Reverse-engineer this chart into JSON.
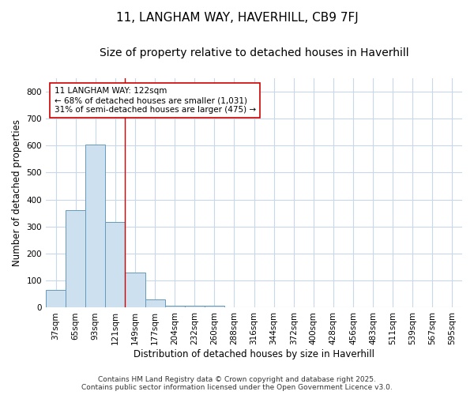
{
  "title": "11, LANGHAM WAY, HAVERHILL, CB9 7FJ",
  "subtitle": "Size of property relative to detached houses in Haverhill",
  "xlabel": "Distribution of detached houses by size in Haverhill",
  "ylabel": "Number of detached properties",
  "categories": [
    "37sqm",
    "65sqm",
    "93sqm",
    "121sqm",
    "149sqm",
    "177sqm",
    "204sqm",
    "232sqm",
    "260sqm",
    "288sqm",
    "316sqm",
    "344sqm",
    "372sqm",
    "400sqm",
    "428sqm",
    "456sqm",
    "483sqm",
    "511sqm",
    "539sqm",
    "567sqm",
    "595sqm"
  ],
  "values": [
    65,
    360,
    605,
    318,
    130,
    30,
    6,
    6,
    6,
    0,
    0,
    0,
    0,
    0,
    0,
    0,
    0,
    0,
    0,
    0,
    0
  ],
  "bar_color": "#cce0f0",
  "bar_edge_color": "#6699bb",
  "highlight_index": 3,
  "highlight_line_color": "#cc0000",
  "annotation_text": "11 LANGHAM WAY: 122sqm\n← 68% of detached houses are smaller (1,031)\n31% of semi-detached houses are larger (475) →",
  "annotation_box_color": "#ffffff",
  "annotation_box_edge_color": "#cc0000",
  "ylim": [
    0,
    850
  ],
  "yticks": [
    0,
    100,
    200,
    300,
    400,
    500,
    600,
    700,
    800
  ],
  "background_color": "#ffffff",
  "plot_area_color": "#ffffff",
  "grid_color": "#c8d8e8",
  "footer_line1": "Contains HM Land Registry data © Crown copyright and database right 2025.",
  "footer_line2": "Contains public sector information licensed under the Open Government Licence v3.0.",
  "title_fontsize": 11,
  "subtitle_fontsize": 10,
  "axis_label_fontsize": 8.5,
  "tick_fontsize": 7.5,
  "annotation_fontsize": 7.5,
  "footer_fontsize": 6.5
}
